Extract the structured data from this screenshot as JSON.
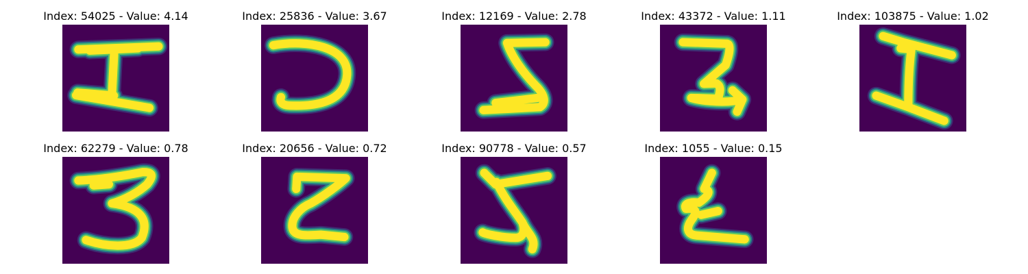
{
  "colors": {
    "background": "#440154",
    "stroke_core": "#fde725",
    "stroke_edge_1": "#5ec962",
    "stroke_edge_2": "#21918c",
    "stroke_edge_3": "#3b528b"
  },
  "panels": [
    {
      "title": "Index: 54025 - Value: 4.14"
    },
    {
      "title": "Index: 25836 - Value: 3.67"
    },
    {
      "title": "Index: 12169 - Value: 2.78"
    },
    {
      "title": "Index: 43372 - Value: 1.11"
    },
    {
      "title": "Index: 103875 - Value: 1.02"
    },
    {
      "title": "Index: 62279 - Value: 0.78"
    },
    {
      "title": "Index: 20656 - Value: 0.72"
    },
    {
      "title": "Index: 90778 - Value: 0.57"
    },
    {
      "title": "Index: 1055 - Value: 0.15"
    }
  ]
}
